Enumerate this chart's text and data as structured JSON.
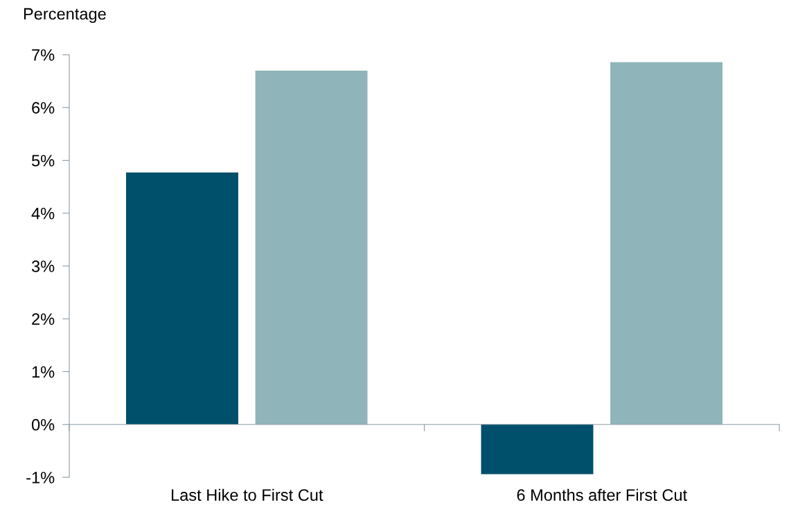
{
  "chart_data": {
    "type": "bar",
    "ylabel": "Percentage",
    "categories": [
      "Last Hike to First Cut",
      "6 Months after First Cut"
    ],
    "series": [
      {
        "color": "#00506b",
        "values": [
          4.77,
          -0.94
        ]
      },
      {
        "color": "#8fb5ba",
        "values": [
          6.7,
          6.86
        ]
      }
    ],
    "ylim": [
      -1,
      7
    ],
    "yticks": [
      {
        "value": -1,
        "label": "-1%"
      },
      {
        "value": 0,
        "label": "0%"
      },
      {
        "value": 1,
        "label": "1%"
      },
      {
        "value": 2,
        "label": "2%"
      },
      {
        "value": 3,
        "label": "3%"
      },
      {
        "value": 4,
        "label": "4%"
      },
      {
        "value": 5,
        "label": "5%"
      },
      {
        "value": 6,
        "label": "6%"
      },
      {
        "value": 7,
        "label": "7%"
      }
    ],
    "legend": false
  }
}
